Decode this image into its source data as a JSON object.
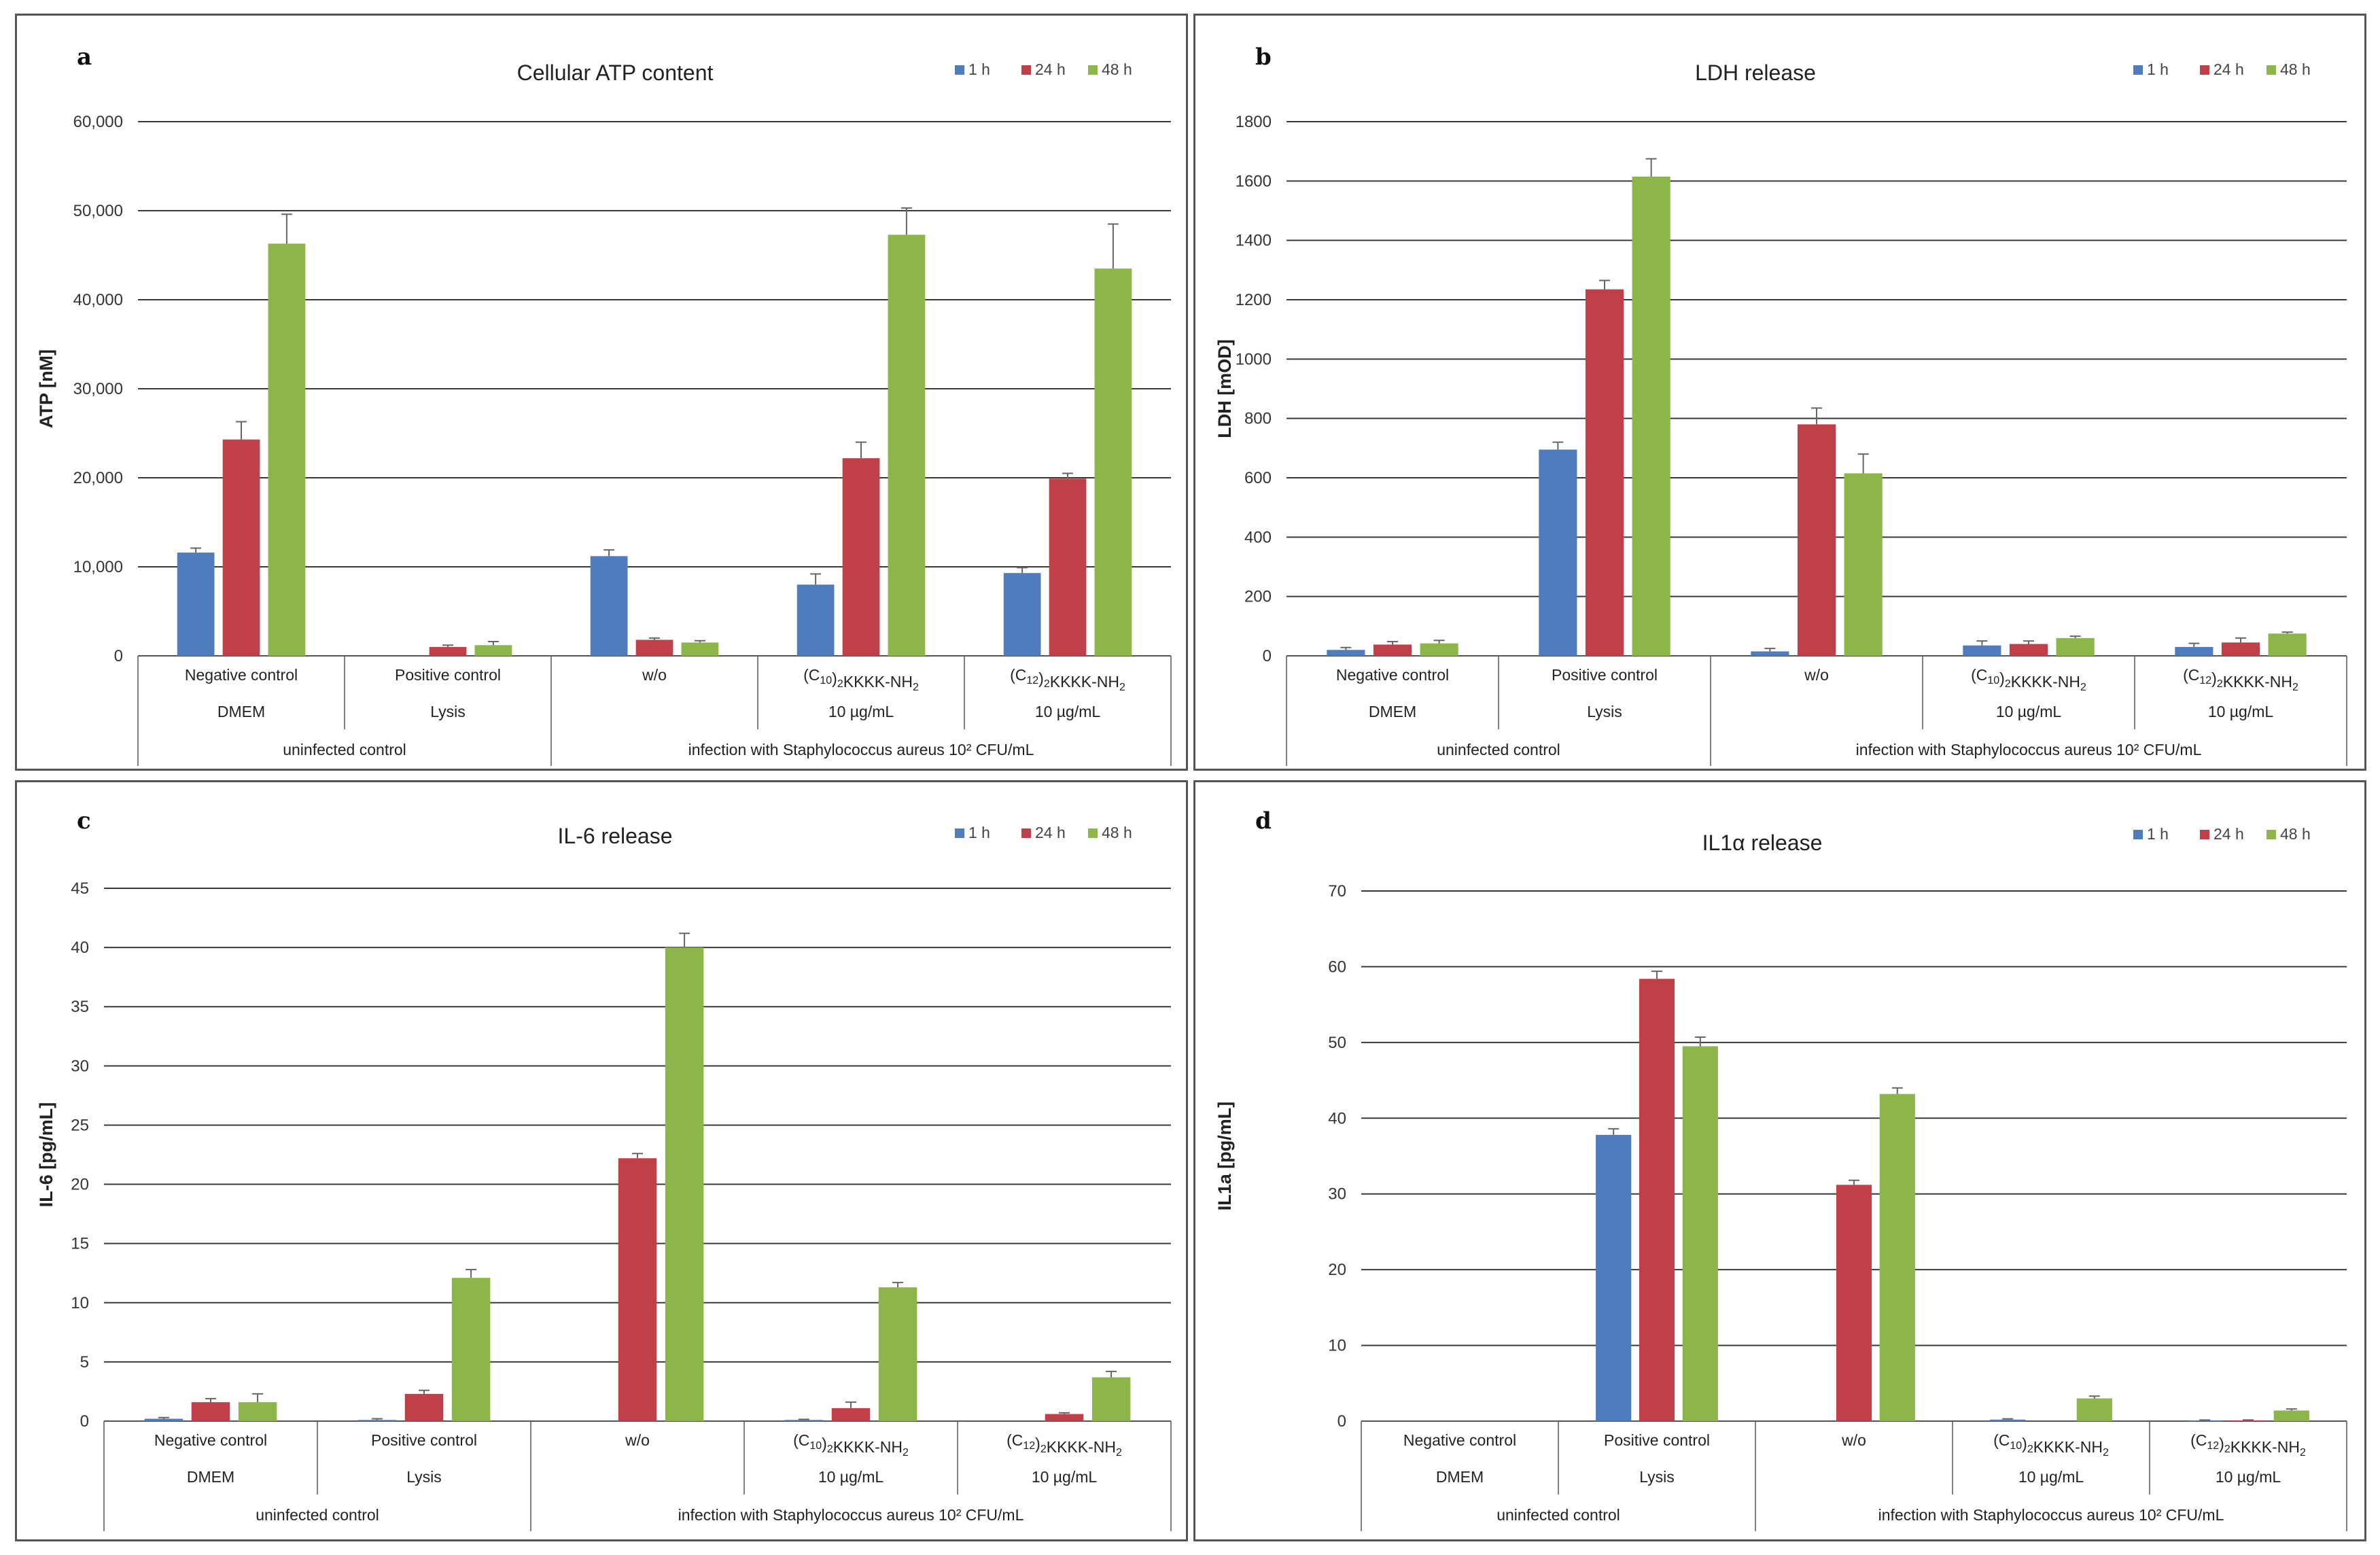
{
  "colors": {
    "1 h": "#4f7bbf",
    "24 h": "#c0404a",
    "48 h": "#8cb54a",
    "grid": "#333333"
  },
  "chart_data": [
    {
      "panel": "a",
      "type": "bar",
      "title": "Cellular ATP content",
      "ylabel": "ATP [nM]",
      "xlabel": "",
      "ylim": [
        0,
        60000
      ],
      "ytick_step": 10000,
      "ytick_labels": [
        "0",
        "10,000",
        "20,000",
        "30,000",
        "40,000",
        "50,000",
        "60,000"
      ],
      "legend": [
        "1 h",
        "24 h",
        "48 h"
      ],
      "categories": [
        "Negative control",
        "Positive control",
        "w/o",
        "(C10)2KKKK-NH2",
        "(C12)2KKKK-NH2"
      ],
      "sublabels": [
        "DMEM",
        "Lysis",
        "",
        "10 µg/mL",
        "10 µg/mL"
      ],
      "groups": [
        {
          "label": "uninfected control",
          "span": 2
        },
        {
          "label": "infection with Staphylococcus aureus 10² CFU/mL",
          "span": 3
        }
      ],
      "series": [
        {
          "name": "1 h",
          "values": [
            11600,
            0,
            11200,
            8000,
            9300
          ],
          "errors": [
            500,
            0,
            700,
            1200,
            600
          ]
        },
        {
          "name": "24 h",
          "values": [
            24300,
            1000,
            1800,
            22200,
            19900
          ],
          "errors": [
            2000,
            200,
            200,
            1800,
            600
          ]
        },
        {
          "name": "48 h",
          "values": [
            46300,
            1200,
            1500,
            47300,
            43500
          ],
          "errors": [
            3300,
            400,
            200,
            3000,
            5000
          ]
        }
      ]
    },
    {
      "panel": "b",
      "type": "bar",
      "title": "LDH release",
      "ylabel": "LDH [mOD]",
      "xlabel": "",
      "ylim": [
        0,
        1800
      ],
      "ytick_step": 200,
      "ytick_labels": [
        "0",
        "200",
        "400",
        "600",
        "800",
        "1000",
        "1200",
        "1400",
        "1600",
        "1800"
      ],
      "legend": [
        "1 h",
        "24 h",
        "48 h"
      ],
      "categories": [
        "Negative control",
        "Positive control",
        "w/o",
        "(C10)2KKKK-NH2",
        "(C12)2KKKK-NH2"
      ],
      "sublabels": [
        "DMEM",
        "Lysis",
        "",
        "10 µg/mL",
        "10 µg/mL"
      ],
      "groups": [
        {
          "label": "uninfected control",
          "span": 2
        },
        {
          "label": "infection with Staphylococcus aureus 10² CFU/mL",
          "span": 3
        }
      ],
      "series": [
        {
          "name": "1 h",
          "values": [
            20,
            695,
            15,
            35,
            30
          ],
          "errors": [
            8,
            25,
            10,
            15,
            12
          ]
        },
        {
          "name": "24 h",
          "values": [
            38,
            1235,
            780,
            40,
            45
          ],
          "errors": [
            10,
            30,
            55,
            10,
            15
          ]
        },
        {
          "name": "48 h",
          "values": [
            42,
            1615,
            615,
            60,
            75
          ],
          "errors": [
            10,
            60,
            65,
            6,
            5
          ]
        }
      ]
    },
    {
      "panel": "c",
      "type": "bar",
      "title": "IL-6 release",
      "ylabel": "IL-6 [pg/mL]",
      "xlabel": "",
      "ylim": [
        0,
        45
      ],
      "ytick_step": 5,
      "ytick_labels": [
        "0",
        "5",
        "10",
        "15",
        "20",
        "25",
        "30",
        "35",
        "40",
        "45"
      ],
      "legend": [
        "1 h",
        "24 h",
        "48 h"
      ],
      "categories": [
        "Negative control",
        "Positive control",
        "w/o",
        "(C10)2KKKK-NH2",
        "(C12)2KKKK-NH2"
      ],
      "sublabels": [
        "DMEM",
        "Lysis",
        "",
        "10 µg/mL",
        "10 µg/mL"
      ],
      "groups": [
        {
          "label": "uninfected control",
          "span": 2
        },
        {
          "label": "infection with Staphylococcus aureus 10² CFU/mL",
          "span": 3
        }
      ],
      "series": [
        {
          "name": "1 h",
          "values": [
            0.2,
            0.1,
            0,
            0.1,
            0
          ],
          "errors": [
            0.1,
            0.1,
            0,
            0.05,
            0
          ]
        },
        {
          "name": "24 h",
          "values": [
            1.6,
            2.3,
            22.2,
            1.1,
            0.6
          ],
          "errors": [
            0.3,
            0.3,
            0.4,
            0.5,
            0.1
          ]
        },
        {
          "name": "48 h",
          "values": [
            1.6,
            12.1,
            40.0,
            11.3,
            3.7
          ],
          "errors": [
            0.7,
            0.7,
            1.2,
            0.4,
            0.5
          ]
        }
      ]
    },
    {
      "panel": "d",
      "type": "bar",
      "title": "IL1α release",
      "ylabel": "IL1a [pg/mL]",
      "xlabel": "",
      "ylim": [
        0,
        70
      ],
      "ytick_step": 10,
      "ytick_labels": [
        "0",
        "10",
        "20",
        "30",
        "40",
        "50",
        "60",
        "70"
      ],
      "legend": [
        "1 h",
        "24 h",
        "48 h"
      ],
      "categories": [
        "Negative control",
        "Positive control",
        "w/o",
        "(C10)2KKKK-NH2",
        "(C12)2KKKK-NH2"
      ],
      "sublabels": [
        "DMEM",
        "Lysis",
        "",
        "10 µg/mL",
        "10 µg/mL"
      ],
      "groups": [
        {
          "label": "uninfected control",
          "span": 2
        },
        {
          "label": "infection with Staphylococcus aureus 10² CFU/mL",
          "span": 3
        }
      ],
      "series": [
        {
          "name": "1 h",
          "values": [
            0,
            37.8,
            0,
            0.2,
            0.1
          ],
          "errors": [
            0,
            0.8,
            0,
            0.1,
            0.05
          ]
        },
        {
          "name": "24 h",
          "values": [
            0,
            58.4,
            31.2,
            0,
            0.1
          ],
          "errors": [
            0,
            1.0,
            0.6,
            0,
            0.05
          ]
        },
        {
          "name": "48 h",
          "values": [
            0,
            49.5,
            43.2,
            3.0,
            1.4
          ],
          "errors": [
            0,
            1.2,
            0.8,
            0.3,
            0.2
          ]
        }
      ]
    }
  ]
}
